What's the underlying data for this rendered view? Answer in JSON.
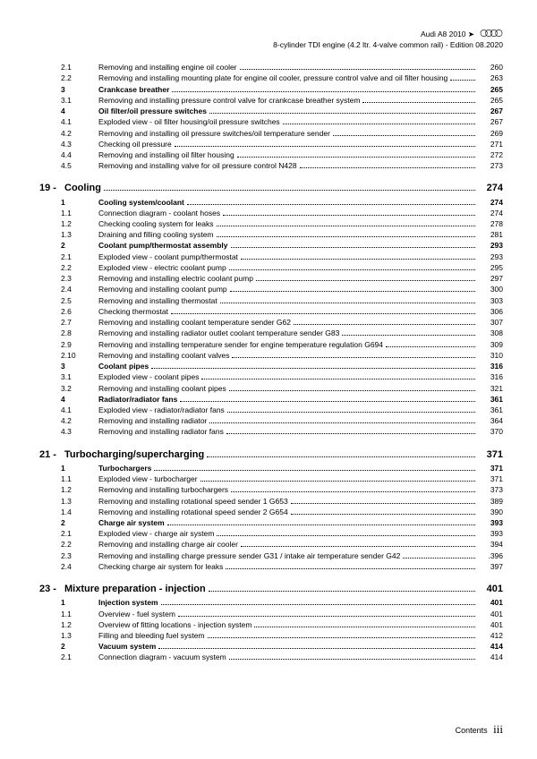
{
  "header": {
    "line1": "Audi A8 2010 ➤",
    "line2": "8-cylinder TDI engine (4.2 ltr. 4-valve common rail) - Edition 08.2020"
  },
  "rows": [
    {
      "t": "sub",
      "n": "2.1",
      "txt": "Removing and installing engine oil cooler",
      "pg": "260"
    },
    {
      "t": "sub",
      "n": "2.2",
      "txt": "Removing and installing mounting plate for engine oil cooler, pressure control valve and oil filter housing",
      "pg": "263",
      "wrap": true
    },
    {
      "t": "sec",
      "n": "3",
      "txt": "Crankcase breather",
      "pg": "265"
    },
    {
      "t": "sub",
      "n": "3.1",
      "txt": "Removing and installing pressure control valve for crankcase breather system",
      "pg": "265"
    },
    {
      "t": "sec",
      "n": "4",
      "txt": "Oil filter/oil pressure switches",
      "pg": "267"
    },
    {
      "t": "sub",
      "n": "4.1",
      "txt": "Exploded view - oil filter housing/oil pressure switches",
      "pg": "267"
    },
    {
      "t": "sub",
      "n": "4.2",
      "txt": "Removing and installing oil pressure switches/oil temperature sender",
      "pg": "269"
    },
    {
      "t": "sub",
      "n": "4.3",
      "txt": "Checking oil pressure",
      "pg": "271"
    },
    {
      "t": "sub",
      "n": "4.4",
      "txt": "Removing and installing oil filter housing",
      "pg": "272"
    },
    {
      "t": "sub",
      "n": "4.5",
      "txt": "Removing and installing valve for oil pressure control N428",
      "pg": "273"
    },
    {
      "t": "ch",
      "n": "19 -",
      "txt": "Cooling",
      "pg": "274"
    },
    {
      "t": "sec",
      "n": "1",
      "txt": "Cooling system/coolant",
      "pg": "274"
    },
    {
      "t": "sub",
      "n": "1.1",
      "txt": "Connection diagram - coolant hoses",
      "pg": "274"
    },
    {
      "t": "sub",
      "n": "1.2",
      "txt": "Checking cooling system for leaks",
      "pg": "278"
    },
    {
      "t": "sub",
      "n": "1.3",
      "txt": "Draining and filling cooling system",
      "pg": "281"
    },
    {
      "t": "sec",
      "n": "2",
      "txt": "Coolant pump/thermostat assembly",
      "pg": "293"
    },
    {
      "t": "sub",
      "n": "2.1",
      "txt": "Exploded view - coolant pump/thermostat",
      "pg": "293"
    },
    {
      "t": "sub",
      "n": "2.2",
      "txt": "Exploded view - electric coolant pump",
      "pg": "295"
    },
    {
      "t": "sub",
      "n": "2.3",
      "txt": "Removing and installing electric coolant pump",
      "pg": "297"
    },
    {
      "t": "sub",
      "n": "2.4",
      "txt": "Removing and installing coolant pump",
      "pg": "300"
    },
    {
      "t": "sub",
      "n": "2.5",
      "txt": "Removing and installing thermostat",
      "pg": "303"
    },
    {
      "t": "sub",
      "n": "2.6",
      "txt": "Checking thermostat",
      "pg": "306"
    },
    {
      "t": "sub",
      "n": "2.7",
      "txt": "Removing and installing coolant temperature sender G62",
      "pg": "307"
    },
    {
      "t": "sub",
      "n": "2.8",
      "txt": "Removing and installing radiator outlet coolant temperature sender G83",
      "pg": "308"
    },
    {
      "t": "sub",
      "n": "2.9",
      "txt": "Removing and installing temperature sender for engine temperature regulation G694",
      "pg": "309"
    },
    {
      "t": "sub",
      "n": "2.10",
      "txt": "Removing and installing coolant valves",
      "pg": "310"
    },
    {
      "t": "sec",
      "n": "3",
      "txt": "Coolant pipes",
      "pg": "316"
    },
    {
      "t": "sub",
      "n": "3.1",
      "txt": "Exploded view - coolant pipes",
      "pg": "316"
    },
    {
      "t": "sub",
      "n": "3.2",
      "txt": "Removing and installing coolant pipes",
      "pg": "321"
    },
    {
      "t": "sec",
      "n": "4",
      "txt": "Radiator/radiator fans",
      "pg": "361"
    },
    {
      "t": "sub",
      "n": "4.1",
      "txt": "Exploded view - radiator/radiator fans",
      "pg": "361"
    },
    {
      "t": "sub",
      "n": "4.2",
      "txt": "Removing and installing radiator",
      "pg": "364"
    },
    {
      "t": "sub",
      "n": "4.3",
      "txt": "Removing and installing radiator fans",
      "pg": "370"
    },
    {
      "t": "ch",
      "n": "21 -",
      "txt": "Turbocharging/supercharging",
      "pg": "371"
    },
    {
      "t": "sec",
      "n": "1",
      "txt": "Turbochargers",
      "pg": "371"
    },
    {
      "t": "sub",
      "n": "1.1",
      "txt": "Exploded view - turbocharger",
      "pg": "371"
    },
    {
      "t": "sub",
      "n": "1.2",
      "txt": "Removing and installing turbochargers",
      "pg": "373"
    },
    {
      "t": "sub",
      "n": "1.3",
      "txt": "Removing and installing rotational speed sender 1 G653",
      "pg": "389"
    },
    {
      "t": "sub",
      "n": "1.4",
      "txt": "Removing and installing rotational speed sender 2 G654",
      "pg": "390"
    },
    {
      "t": "sec",
      "n": "2",
      "txt": "Charge air system",
      "pg": "393"
    },
    {
      "t": "sub",
      "n": "2.1",
      "txt": "Exploded view - charge air system",
      "pg": "393"
    },
    {
      "t": "sub",
      "n": "2.2",
      "txt": "Removing and installing charge air cooler",
      "pg": "394"
    },
    {
      "t": "sub",
      "n": "2.3",
      "txt": "Removing and installing charge pressure sender G31 / intake air temperature sender G42",
      "pg": ".396"
    },
    {
      "t": "sub",
      "n": "2.4",
      "txt": "Checking charge air system for leaks",
      "pg": "397"
    },
    {
      "t": "ch",
      "n": "23 -",
      "txt": "Mixture preparation - injection",
      "pg": "401"
    },
    {
      "t": "sec",
      "n": "1",
      "txt": "Injection system",
      "pg": "401"
    },
    {
      "t": "sub",
      "n": "1.1",
      "txt": "Overview - fuel system",
      "pg": "401"
    },
    {
      "t": "sub",
      "n": "1.2",
      "txt": "Overview of fitting locations - injection system",
      "pg": "401"
    },
    {
      "t": "sub",
      "n": "1.3",
      "txt": "Filling and bleeding fuel system",
      "pg": "412"
    },
    {
      "t": "sec",
      "n": "2",
      "txt": "Vacuum system",
      "pg": "414"
    },
    {
      "t": "sub",
      "n": "2.1",
      "txt": "Connection diagram - vacuum system",
      "pg": "414"
    }
  ],
  "footer": {
    "label": "Contents",
    "page": "iii"
  }
}
